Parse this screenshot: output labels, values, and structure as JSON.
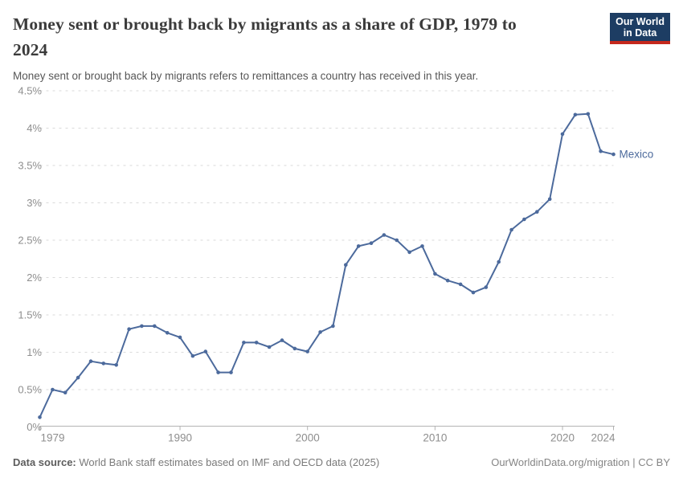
{
  "header": {
    "title": "Money sent or brought back by migrants as a share of GDP, 1979 to 2024",
    "title_lines": [
      "Money sent or brought back by migrants as a share of GDP, 1979 to",
      "2024"
    ],
    "subtitle": "Money sent or brought back by migrants refers to remittances a country has received in this year.",
    "logo": {
      "line1": "Our World",
      "line2": "in Data"
    }
  },
  "chart_data": {
    "type": "line",
    "title": "Money sent or brought back by migrants as a share of GDP, 1979 to 2024",
    "xlabel": "",
    "ylabel": "",
    "xlim": [
      1979,
      2024
    ],
    "ylim": [
      0,
      4.5
    ],
    "x_ticks": [
      1979,
      1990,
      2000,
      2010,
      2020,
      2024
    ],
    "y_ticks": [
      0,
      0.5,
      1,
      1.5,
      2,
      2.5,
      3,
      3.5,
      4,
      4.5
    ],
    "y_tick_suffix": "%",
    "grid": "horizontal-dashed",
    "legend_position": "end-of-line-label",
    "series": [
      {
        "name": "Mexico",
        "color": "#4c6a9c",
        "x": [
          1979,
          1980,
          1981,
          1982,
          1983,
          1984,
          1985,
          1986,
          1987,
          1988,
          1989,
          1990,
          1991,
          1992,
          1993,
          1994,
          1995,
          1996,
          1997,
          1998,
          1999,
          2000,
          2001,
          2002,
          2003,
          2004,
          2005,
          2006,
          2007,
          2008,
          2009,
          2010,
          2011,
          2012,
          2013,
          2014,
          2015,
          2016,
          2017,
          2018,
          2019,
          2020,
          2021,
          2022,
          2023,
          2024
        ],
        "values": [
          0.13,
          0.5,
          0.46,
          0.66,
          0.88,
          0.85,
          0.83,
          1.31,
          1.35,
          1.35,
          1.26,
          1.2,
          0.95,
          1.01,
          0.73,
          0.73,
          1.13,
          1.13,
          1.07,
          1.16,
          1.05,
          1.01,
          1.27,
          1.35,
          2.17,
          2.42,
          2.46,
          2.57,
          2.5,
          2.34,
          2.42,
          2.05,
          1.96,
          1.91,
          1.8,
          1.87,
          2.21,
          2.64,
          2.78,
          2.88,
          3.05,
          3.92,
          4.18,
          4.19,
          3.69,
          3.65
        ]
      }
    ]
  },
  "footer": {
    "datasource_label": "Data source:",
    "datasource_text": " World Bank staff estimates based on IMF and OECD data (2025)",
    "credit": "OurWorldinData.org/migration | CC BY"
  },
  "colors": {
    "line": "#4c6a9c",
    "grid": "#dadada",
    "axis": "#b3b3b3",
    "tick_label": "#8e8e8e",
    "logo_bg": "#1d3d63",
    "logo_stripe": "#c5281c",
    "title": "#3b3b3b",
    "subtitle": "#575757"
  }
}
